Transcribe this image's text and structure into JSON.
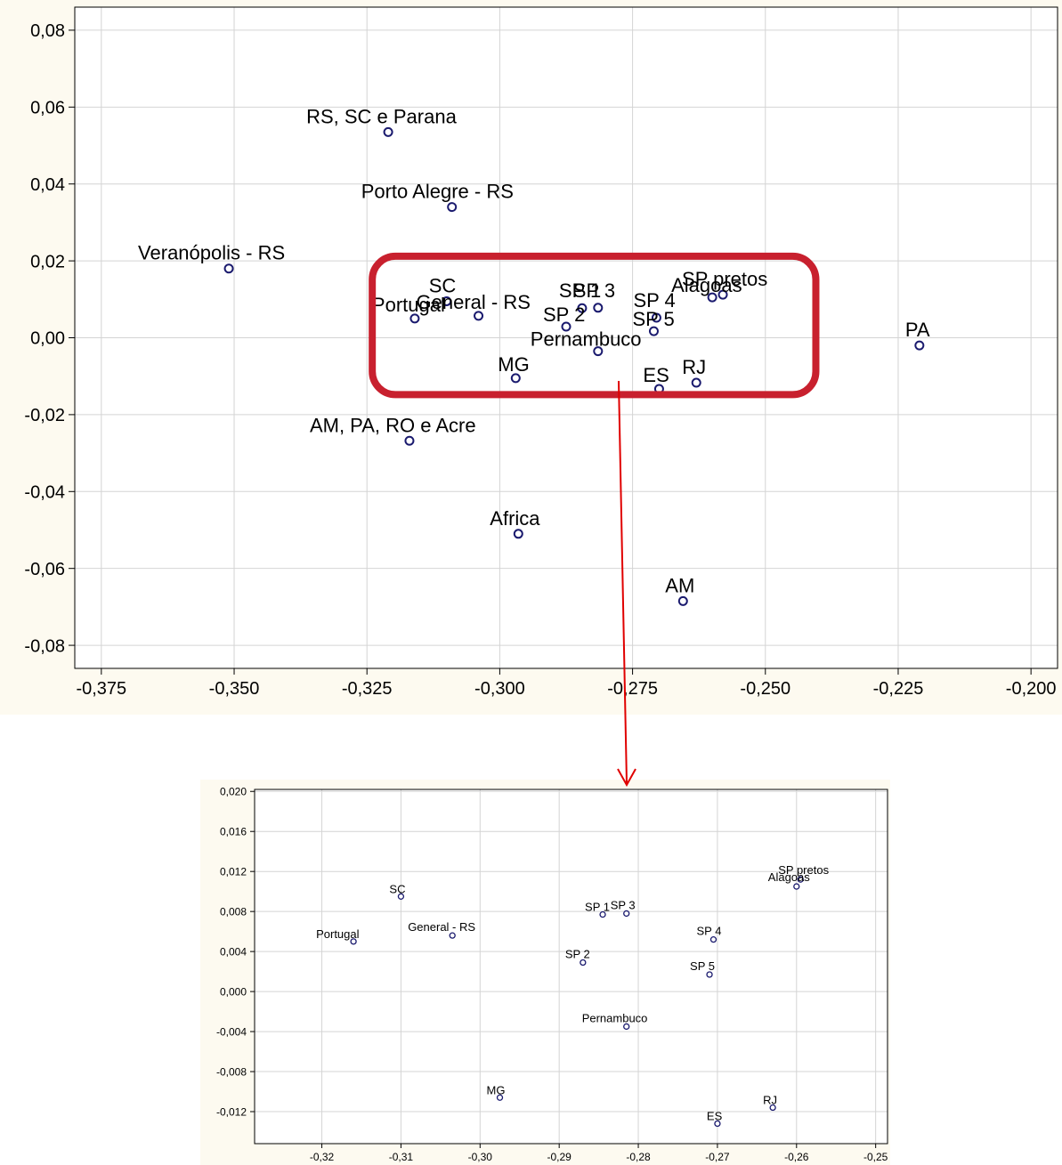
{
  "chart_data": [
    {
      "type": "scatter",
      "title": "",
      "xlabel": "",
      "ylabel": "",
      "xlim": [
        -0.38,
        -0.195
      ],
      "ylim": [
        -0.086,
        0.086
      ],
      "xticks": [
        -0.375,
        -0.35,
        -0.325,
        -0.3,
        -0.275,
        -0.25,
        -0.225,
        -0.2
      ],
      "xtick_labels": [
        "-0,375",
        "-0,350",
        "-0,325",
        "-0,300",
        "-0,275",
        "-0,250",
        "-0,225",
        "-0,200"
      ],
      "yticks": [
        0.08,
        0.06,
        0.04,
        0.02,
        0.0,
        -0.02,
        -0.04,
        -0.06,
        -0.08
      ],
      "ytick_labels": [
        "0,08",
        "0,06",
        "0,04",
        "0,02",
        "0,00",
        "-0,02",
        "-0,04",
        "-0,06",
        "-0,08"
      ],
      "grid": true,
      "marker_color": "#1a1a6e",
      "points": [
        {
          "label": "RS, SC e Parana",
          "x": -0.321,
          "y": 0.0535
        },
        {
          "label": "Porto Alegre - RS",
          "x": -0.309,
          "y": 0.034
        },
        {
          "label": "Veranópolis - RS",
          "x": -0.351,
          "y": 0.018
        },
        {
          "label": "SC",
          "x": -0.31,
          "y": 0.0095
        },
        {
          "label": "Portugal",
          "x": -0.316,
          "y": 0.005
        },
        {
          "label": "General - RS",
          "x": -0.304,
          "y": 0.0057
        },
        {
          "label": "SP 1",
          "x": -0.2845,
          "y": 0.0077
        },
        {
          "label": "SP 3",
          "x": -0.2815,
          "y": 0.0078
        },
        {
          "label": "SP 2",
          "x": -0.2875,
          "y": 0.0029
        },
        {
          "label": "SP 4",
          "x": -0.2705,
          "y": 0.0052
        },
        {
          "label": "SP 5",
          "x": -0.271,
          "y": 0.0017
        },
        {
          "label": "SP pretos",
          "x": -0.258,
          "y": 0.0112
        },
        {
          "label": "Alagoas",
          "x": -0.26,
          "y": 0.0105
        },
        {
          "label": "Pernambuco",
          "x": -0.2815,
          "y": -0.0035
        },
        {
          "label": "MG",
          "x": -0.297,
          "y": -0.0105
        },
        {
          "label": "ES",
          "x": -0.27,
          "y": -0.0133
        },
        {
          "label": "RJ",
          "x": -0.263,
          "y": -0.0117
        },
        {
          "label": "PA",
          "x": -0.221,
          "y": -0.002
        },
        {
          "label": "AM, PA, RO e Acre",
          "x": -0.317,
          "y": -0.0268
        },
        {
          "label": "Africa",
          "x": -0.2965,
          "y": -0.051
        },
        {
          "label": "AM",
          "x": -0.2655,
          "y": -0.0685
        }
      ],
      "annotations": {
        "highlight_region": {
          "x": [
            -0.324,
            -0.2405
          ],
          "y": [
            -0.0148,
            0.0212
          ],
          "color": "#c8202e"
        },
        "arrow_color": "#e00000"
      }
    },
    {
      "type": "scatter",
      "title": "",
      "xlabel": "",
      "ylabel": "",
      "xlim": [
        -0.3285,
        -0.2485
      ],
      "ylim": [
        -0.0152,
        0.0202
      ],
      "xticks": [
        -0.32,
        -0.31,
        -0.3,
        -0.29,
        -0.28,
        -0.27,
        -0.26,
        -0.25
      ],
      "xtick_labels": [
        "-0,32",
        "-0,31",
        "-0,30",
        "-0,29",
        "-0,28",
        "-0,27",
        "-0,26",
        "-0,25"
      ],
      "yticks": [
        0.02,
        0.016,
        0.012,
        0.008,
        0.004,
        0.0,
        -0.004,
        -0.008,
        -0.012
      ],
      "ytick_labels": [
        "0,020",
        "0,016",
        "0,012",
        "0,008",
        "0,004",
        "0,000",
        "-0,004",
        "-0,008",
        "-0,012"
      ],
      "grid": true,
      "marker_color": "#1a1a6e",
      "points": [
        {
          "label": "SC",
          "x": -0.31,
          "y": 0.0095
        },
        {
          "label": "Portugal",
          "x": -0.316,
          "y": 0.005
        },
        {
          "label": "General - RS",
          "x": -0.3035,
          "y": 0.0056
        },
        {
          "label": "SP 1",
          "x": -0.2845,
          "y": 0.0077
        },
        {
          "label": "SP 3",
          "x": -0.2815,
          "y": 0.0078
        },
        {
          "label": "SP 2",
          "x": -0.287,
          "y": 0.0029
        },
        {
          "label": "SP 4",
          "x": -0.2705,
          "y": 0.0052
        },
        {
          "label": "SP 5",
          "x": -0.271,
          "y": 0.0017
        },
        {
          "label": "SP pretos",
          "x": -0.2595,
          "y": 0.0112
        },
        {
          "label": "Alagoas",
          "x": -0.26,
          "y": 0.0105
        },
        {
          "label": "Pernambuco",
          "x": -0.2815,
          "y": -0.0035
        },
        {
          "label": "MG",
          "x": -0.2975,
          "y": -0.0106
        },
        {
          "label": "ES",
          "x": -0.27,
          "y": -0.0132
        },
        {
          "label": "RJ",
          "x": -0.263,
          "y": -0.0116
        }
      ]
    }
  ]
}
